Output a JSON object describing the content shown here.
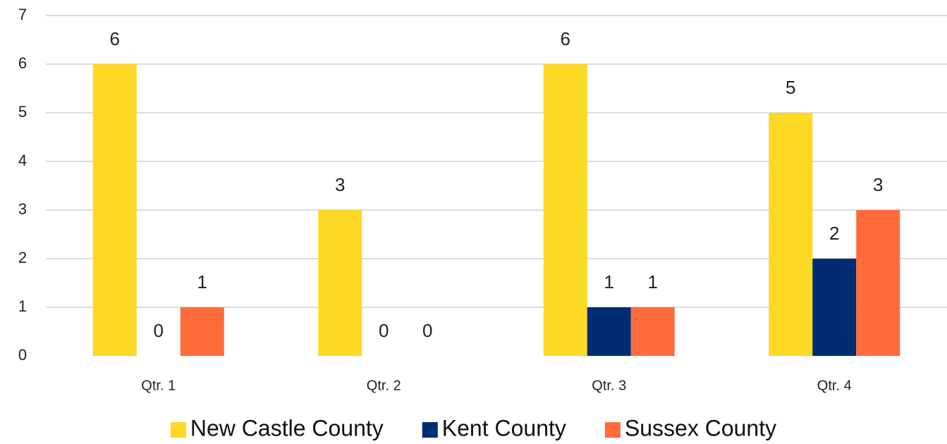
{
  "chart_data": {
    "type": "bar",
    "categories": [
      "Qtr. 1",
      "Qtr. 2",
      "Qtr. 3",
      "Qtr. 4"
    ],
    "series": [
      {
        "name": "New Castle County",
        "color": "#fdd825",
        "values": [
          6,
          3,
          6,
          5
        ]
      },
      {
        "name": "Kent County",
        "color": "#002d72",
        "values": [
          0,
          0,
          1,
          2
        ]
      },
      {
        "name": "Sussex County",
        "color": "#ff6b3b",
        "values": [
          1,
          0,
          1,
          3
        ]
      }
    ],
    "ylim": [
      0,
      7
    ],
    "yticks": [
      0,
      1,
      2,
      3,
      4,
      5,
      6,
      7
    ],
    "grid": true,
    "legend": "bottom"
  }
}
